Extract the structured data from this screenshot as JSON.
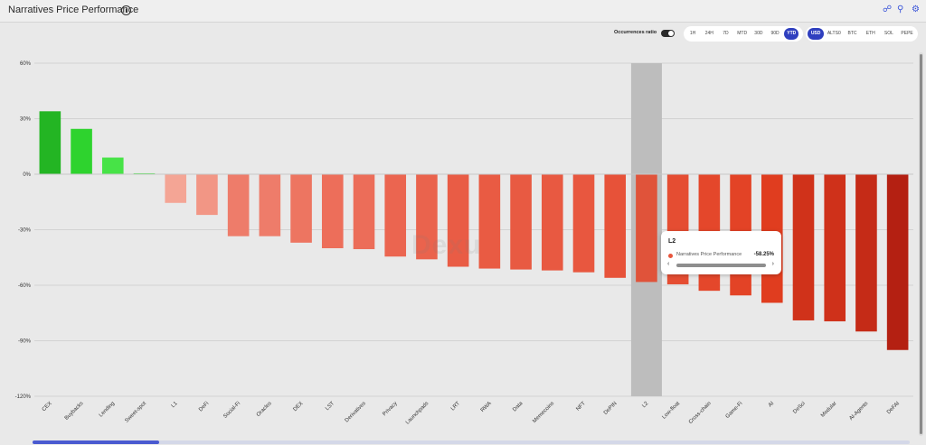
{
  "header": {
    "title": "Narratives Price Performance",
    "info_icon": "info-icon",
    "icons": [
      "share-icon",
      "search-icon",
      "settings-icon"
    ]
  },
  "controls": {
    "occurrences_label": "Occurrences ratio",
    "timeframes": [
      "1H",
      "24H",
      "7D",
      "MTD",
      "30D",
      "90D",
      "YTD"
    ],
    "active_timeframe": "YTD",
    "currencies": [
      "USD",
      "ALTS0",
      "BTC",
      "ETH",
      "SOL",
      "PEPE"
    ],
    "active_currency": "USD"
  },
  "colors": {
    "accent": "#2f3fbf",
    "positive": "#2ed32e",
    "negative": "#e8553c"
  },
  "tooltip": {
    "title": "L2",
    "series": "Narratives Price Performance",
    "value": "-58.25%"
  },
  "watermark": "Dexu",
  "chart_data": {
    "type": "bar",
    "title": "Narratives Price Performance",
    "ylim": [
      -120,
      60
    ],
    "yticks": [
      "60%",
      "30%",
      "0%",
      "-30%",
      "-60%",
      "-90%",
      "-120%"
    ],
    "ytick_values": [
      60,
      30,
      0,
      -30,
      -60,
      -90,
      -120
    ],
    "grid": true,
    "highlighted_category": "L2",
    "categories": [
      "CEX",
      "Buybacks",
      "Lending",
      "Sweet-spot",
      "L1",
      "DeFi",
      "Social-Fi",
      "Oracles",
      "DEX",
      "LST",
      "Derivatives",
      "Privacy",
      "Launchpads",
      "LRT",
      "RWA",
      "Data",
      "Memecoins",
      "NFT",
      "DePIN",
      "L2",
      "Low-float",
      "Cross-chain",
      "Game-Fi",
      "AI",
      "DeSci",
      "Modular",
      "AI-Agents",
      "DeFAI"
    ],
    "series": [
      {
        "name": "Narratives Price Performance",
        "values": [
          34,
          24.5,
          9,
          0.5,
          -15.5,
          -22,
          -33.5,
          -33.5,
          -37,
          -40,
          -40.5,
          -44.5,
          -46,
          -50,
          -51,
          -51.5,
          -52,
          -53,
          -56,
          -58.25,
          -59.5,
          -63,
          -65.5,
          -69.5,
          -79,
          -79.5,
          -85,
          -95
        ]
      }
    ]
  }
}
